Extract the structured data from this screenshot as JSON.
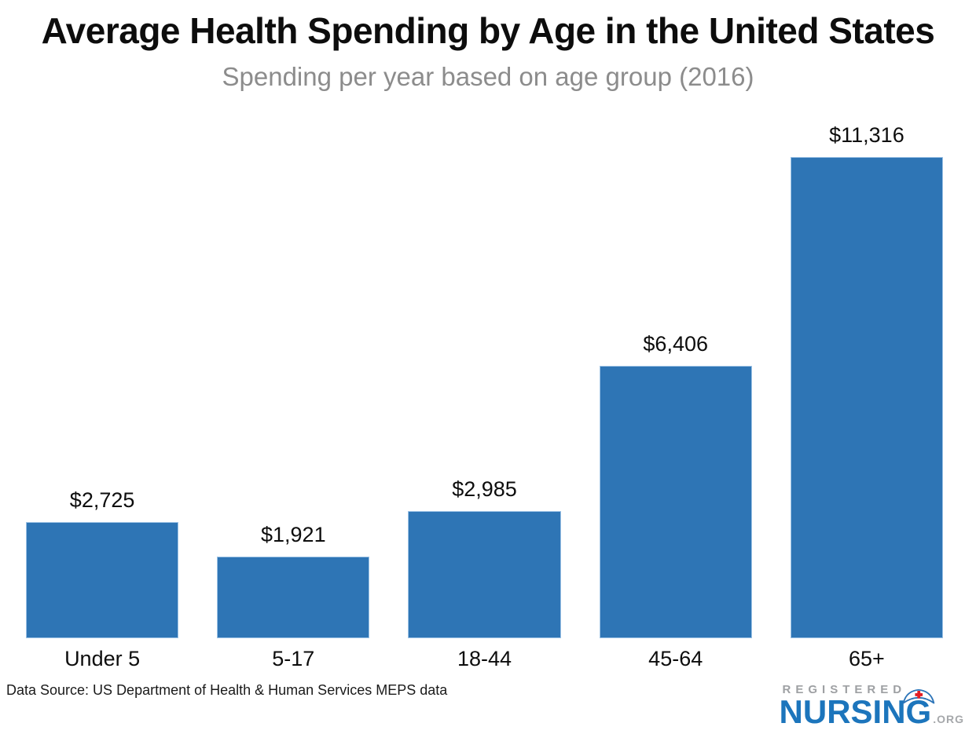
{
  "chart_data": {
    "type": "bar",
    "title": "Average Health Spending by Age in the United States",
    "subtitle": "Spending per year based on age group (2016)",
    "categories": [
      "Under 5",
      "5-17",
      "18-44",
      "45-64",
      "65+"
    ],
    "values": [
      2725,
      1921,
      2985,
      6406,
      11316
    ],
    "value_labels": [
      "$2,725",
      "$1,921",
      "$2,985",
      "$6,406",
      "$11,316"
    ],
    "xlabel": "",
    "ylabel": "",
    "ylim": [
      0,
      11316
    ],
    "grid": false,
    "legend": false,
    "value_labels_position": "above-bars",
    "bar_color": "#2E75B5",
    "bar_border_color": "#9CC2E5"
  },
  "footer": {
    "source": "Data Source: US Department of Health & Human Services MEPS data",
    "logo": {
      "registered": "REGISTERED",
      "nursing": "NURSING",
      "org": ".ORG",
      "nursing_color": "#1C75BC",
      "gray_color": "#A6A8AB",
      "cross_color": "#E31E25",
      "cap_icon": "nurse-cap-icon"
    }
  }
}
